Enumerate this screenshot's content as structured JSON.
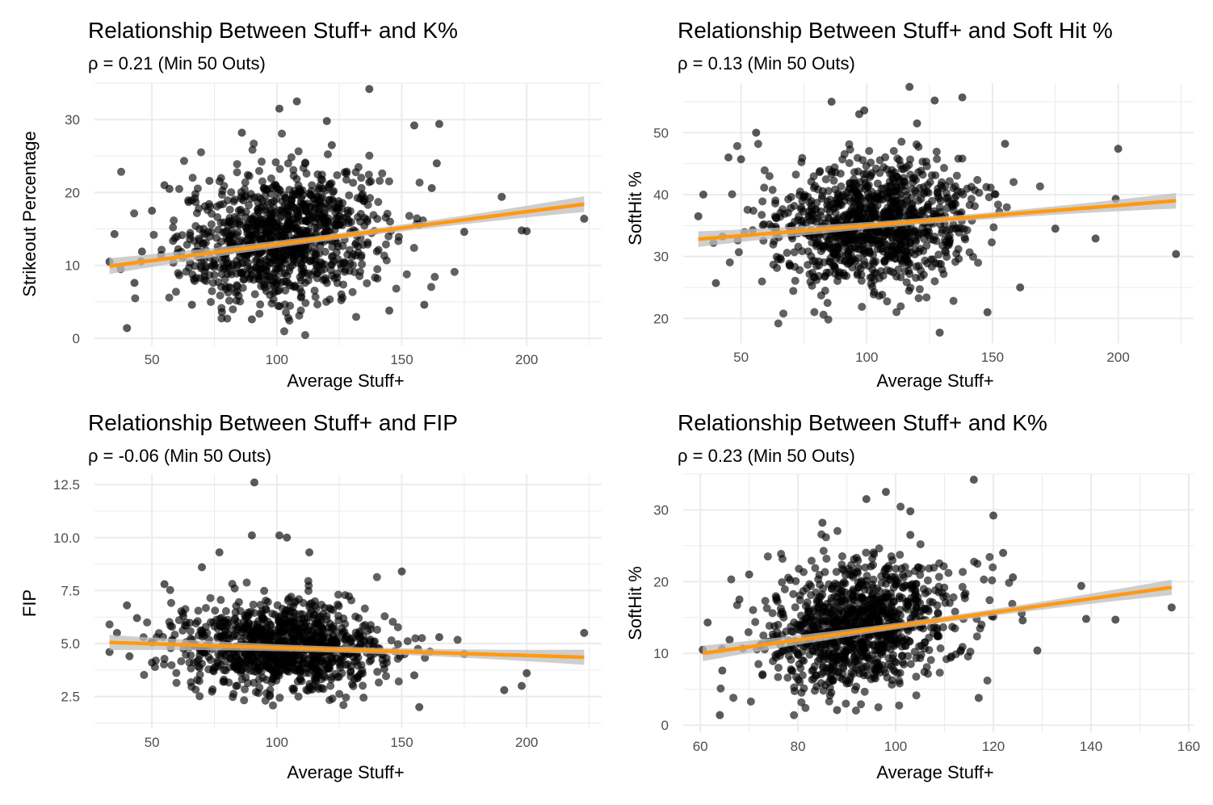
{
  "colors": {
    "point": "#000000",
    "line": "#FF9911",
    "band": "#BEBEBE",
    "grid": "#EBEBEB",
    "tick": "#4D4D4D"
  },
  "chart_data": [
    {
      "type": "scatter",
      "title": "Relationship Between Stuff+ and K%",
      "subtitle": "ρ = 0.21 (Min 50 Outs)",
      "xlabel": "Average Stuff+",
      "ylabel": "Strikeout Percentage",
      "xlim": [
        27,
        230
      ],
      "ylim": [
        -1,
        35
      ],
      "xticks": [
        50,
        100,
        150,
        200
      ],
      "yticks": [
        0,
        10,
        20,
        30
      ],
      "fit": {
        "x": [
          33,
          223
        ],
        "y": [
          9.9,
          18.4
        ]
      },
      "points": {
        "n_approx": 1000,
        "center": [
          102,
          13.8
        ],
        "spread": [
          24,
          5.3
        ],
        "outliers": [
          [
            33,
            10.5
          ],
          [
            35,
            14.3
          ],
          [
            40,
            1.4
          ],
          [
            43,
            7.6
          ],
          [
            46,
            11.9
          ],
          [
            50,
            17.5
          ],
          [
            55,
            21.0
          ],
          [
            57,
            20.5
          ],
          [
            66,
            4.6
          ],
          [
            73,
            21.6
          ],
          [
            78,
            3.6
          ],
          [
            86,
            28.2
          ],
          [
            90,
            2.6
          ],
          [
            101,
            31.5
          ],
          [
            108,
            32.5
          ],
          [
            120,
            29.8
          ],
          [
            122,
            26.5
          ],
          [
            137,
            34.2
          ],
          [
            145,
            3.8
          ],
          [
            155,
            29.2
          ],
          [
            159,
            4.6
          ],
          [
            162,
            20.6
          ],
          [
            164,
            24.0
          ],
          [
            165,
            29.4
          ],
          [
            175,
            14.6
          ],
          [
            190,
            19.4
          ],
          [
            198,
            14.8
          ],
          [
            200,
            14.7
          ],
          [
            223,
            16.4
          ]
        ]
      }
    },
    {
      "type": "scatter",
      "title": "Relationship Between Stuff+ and Soft Hit %",
      "subtitle": "ρ = 0.13 (Min 50 Outs)",
      "xlabel": "Average Stuff+",
      "ylabel": "SoftHit %",
      "xlim": [
        27,
        230
      ],
      "ylim": [
        16,
        58
      ],
      "xticks": [
        50,
        100,
        150,
        200
      ],
      "yticks": [
        20,
        30,
        40,
        50
      ],
      "fit": {
        "x": [
          33,
          223
        ],
        "y": [
          32.8,
          39.0
        ]
      },
      "points": {
        "n_approx": 1000,
        "center": [
          102,
          35.0
        ],
        "spread": [
          24,
          6.0
        ],
        "outliers": [
          [
            33,
            36.5
          ],
          [
            35,
            40.0
          ],
          [
            39,
            32.2
          ],
          [
            40,
            25.7
          ],
          [
            45,
            46.0
          ],
          [
            50,
            45.7
          ],
          [
            56,
            50.0
          ],
          [
            86,
            55.0
          ],
          [
            97,
            53.0
          ],
          [
            99,
            53.6
          ],
          [
            117,
            57.4
          ],
          [
            120,
            51.5
          ],
          [
            127,
            55.2
          ],
          [
            129,
            17.7
          ],
          [
            138,
            55.7
          ],
          [
            148,
            21.0
          ],
          [
            155,
            48.2
          ],
          [
            161,
            25.0
          ],
          [
            175,
            34.5
          ],
          [
            191,
            32.9
          ],
          [
            199,
            39.3
          ],
          [
            200,
            47.4
          ],
          [
            223,
            30.4
          ]
        ]
      }
    },
    {
      "type": "scatter",
      "title": "Relationship Between Stuff+ and FIP",
      "subtitle": "ρ = -0.06 (Min 50 Outs)",
      "xlabel": "Average Stuff+",
      "ylabel": "FIP",
      "xlim": [
        27,
        230
      ],
      "ylim": [
        1.0,
        13.0
      ],
      "xticks": [
        50,
        100,
        150,
        200
      ],
      "yticks": [
        2.5,
        5.0,
        7.5,
        10.0,
        12.5
      ],
      "ytick_labels": [
        "2.5",
        "5.0",
        "7.5",
        "10.0",
        "12.5"
      ],
      "fit": {
        "x": [
          33,
          223
        ],
        "y": [
          5.05,
          4.35
        ]
      },
      "points": {
        "n_approx": 1000,
        "center": [
          102,
          4.8
        ],
        "spread": [
          24,
          1.3
        ],
        "outliers": [
          [
            33,
            4.6
          ],
          [
            36,
            5.5
          ],
          [
            40,
            6.8
          ],
          [
            41,
            4.4
          ],
          [
            44,
            6.2
          ],
          [
            50,
            4.1
          ],
          [
            55,
            7.8
          ],
          [
            70,
            8.6
          ],
          [
            77,
            9.3
          ],
          [
            91,
            12.6
          ],
          [
            90,
            10.1
          ],
          [
            101,
            10.1
          ],
          [
            104,
            10.0
          ],
          [
            113,
            9.3
          ],
          [
            143,
            3.8
          ],
          [
            150,
            8.4
          ],
          [
            155,
            3.5
          ],
          [
            157,
            2.0
          ],
          [
            165,
            5.3
          ],
          [
            175,
            4.5
          ],
          [
            191,
            2.8
          ],
          [
            198,
            3.0
          ],
          [
            200,
            3.6
          ],
          [
            223,
            5.5
          ]
        ]
      }
    },
    {
      "type": "scatter",
      "title": "Relationship Between Stuff+ and K%",
      "subtitle": "ρ = 0.23 (Min 50 Outs)",
      "xlabel": "Average Stuff+",
      "ylabel": "SoftHit %",
      "xlim": [
        56.5,
        161
      ],
      "ylim": [
        -1,
        35
      ],
      "xticks": [
        60,
        80,
        100,
        120,
        140,
        160
      ],
      "yticks": [
        0,
        10,
        20,
        30
      ],
      "fit": {
        "x": [
          60.5,
          156.5
        ],
        "y": [
          10.0,
          19.2
        ]
      },
      "points": {
        "n_approx": 1000,
        "center": [
          93,
          13.8
        ],
        "spread": [
          12,
          5.3
        ],
        "outliers": [
          [
            60.5,
            10.5
          ],
          [
            61.5,
            14.3
          ],
          [
            64,
            1.4
          ],
          [
            64.5,
            7.6
          ],
          [
            66,
            11.9
          ],
          [
            68,
            17.5
          ],
          [
            70,
            21.0
          ],
          [
            85,
            28.2
          ],
          [
            88,
            2.1
          ],
          [
            94,
            31.5
          ],
          [
            98,
            32.5
          ],
          [
            103,
            29.8
          ],
          [
            103,
            26.5
          ],
          [
            116,
            34.2
          ],
          [
            117,
            3.8
          ],
          [
            120,
            29.2
          ],
          [
            122,
            24.0
          ],
          [
            124,
            20.6
          ],
          [
            126,
            14.6
          ],
          [
            129,
            10.4
          ],
          [
            138,
            19.4
          ],
          [
            139,
            14.8
          ],
          [
            145,
            14.7
          ],
          [
            156.5,
            16.4
          ]
        ]
      }
    }
  ]
}
